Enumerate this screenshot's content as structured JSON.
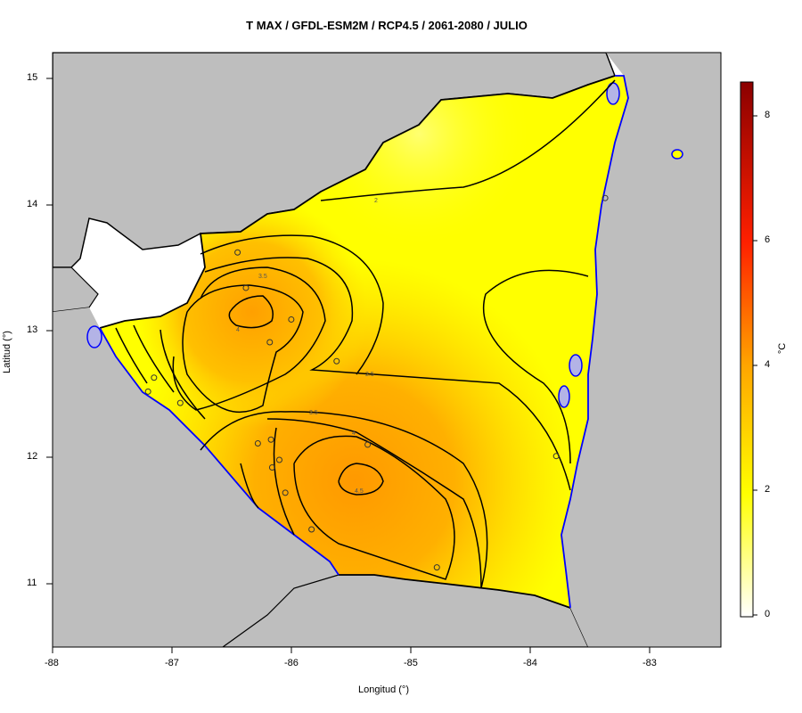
{
  "title": "T MAX / GFDL-ESM2M / RCP4.5 / 2061-2080 / JULIO",
  "xlabel": "Longitud (°)",
  "ylabel": "Latitud (°)",
  "x_ticks": [
    "-88",
    "-87",
    "-86",
    "-85",
    "-84",
    "-83"
  ],
  "y_ticks": [
    "15",
    "14",
    "13",
    "12",
    "11"
  ],
  "colorbar": {
    "unit": "°C",
    "ticks": [
      "0",
      "2",
      "4",
      "6",
      "8"
    ],
    "range": [
      0,
      8.6
    ],
    "colors": [
      "#ffffff",
      "#ffff00",
      "#ffa500",
      "#ff0000",
      "#8b0000"
    ]
  },
  "contour_labels": [
    "2",
    "2.5",
    "3.5",
    "4",
    "3.5",
    "4",
    "4.5"
  ],
  "colors": {
    "land_out": "#bebebe",
    "water": "#0000ff",
    "coast_fill": "#b3b3e6"
  },
  "chart_data": {
    "type": "heatmap",
    "title": "T MAX / GFDL-ESM2M / RCP4.5 / 2061-2080 / JULIO",
    "xlabel": "Longitud (°)",
    "ylabel": "Latitud (°)",
    "xlim": [
      -88,
      -82.4
    ],
    "ylim": [
      10.5,
      15.2
    ],
    "colorbar_range": [
      0,
      8.6
    ],
    "contour_levels": [
      2,
      2.5,
      3.5,
      4,
      4.5
    ],
    "maxima": [
      {
        "lon": -85.45,
        "lat": 11.82,
        "value": 4.5
      },
      {
        "lon": -86.35,
        "lat": 13.15,
        "value": 4.0
      }
    ],
    "stations": [
      {
        "lon": -86.45,
        "lat": 13.62
      },
      {
        "lon": -86.38,
        "lat": 13.34
      },
      {
        "lon": -86.0,
        "lat": 13.09
      },
      {
        "lon": -86.18,
        "lat": 12.91
      },
      {
        "lon": -85.62,
        "lat": 12.76
      },
      {
        "lon": -87.15,
        "lat": 12.63
      },
      {
        "lon": -87.2,
        "lat": 12.52
      },
      {
        "lon": -86.93,
        "lat": 12.43
      },
      {
        "lon": -86.28,
        "lat": 12.11
      },
      {
        "lon": -86.17,
        "lat": 12.14
      },
      {
        "lon": -86.16,
        "lat": 11.92
      },
      {
        "lon": -86.1,
        "lat": 11.98
      },
      {
        "lon": -86.05,
        "lat": 11.72
      },
      {
        "lon": -85.83,
        "lat": 11.43
      },
      {
        "lon": -85.36,
        "lat": 12.1
      },
      {
        "lon": -84.78,
        "lat": 11.13
      },
      {
        "lon": -83.78,
        "lat": 12.01
      },
      {
        "lon": -83.37,
        "lat": 14.05
      }
    ]
  }
}
